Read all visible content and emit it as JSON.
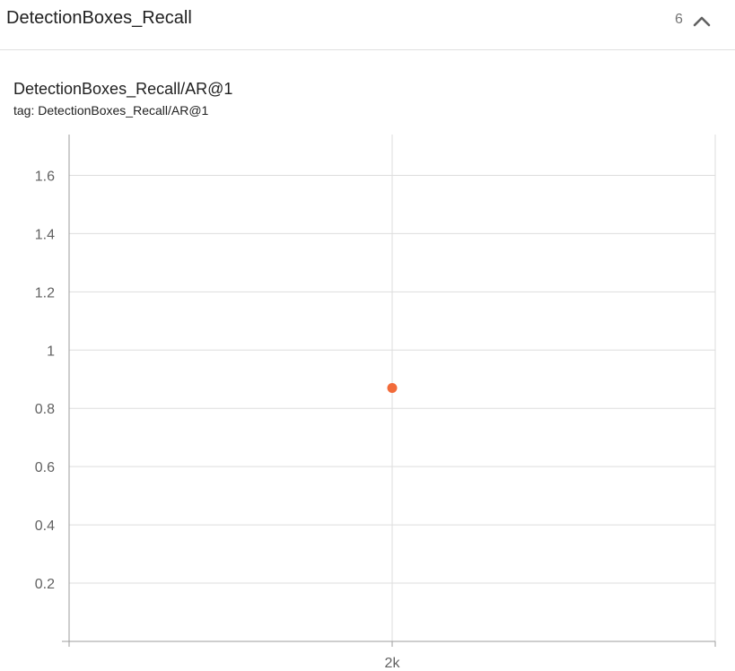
{
  "section": {
    "title": "DetectionBoxes_Recall",
    "count": "6",
    "collapse_icon": "chevron-up-icon"
  },
  "card": {
    "title": "DetectionBoxes_Recall/AR@1",
    "tag": "tag: DetectionBoxes_Recall/AR@1"
  },
  "colors": {
    "series": "#f26b3a",
    "grid": "#dddddd",
    "axis": "#9e9e9e",
    "tick_text": "#616161"
  },
  "chart_data": {
    "type": "scatter",
    "title": "DetectionBoxes_Recall/AR@1",
    "xlabel": "",
    "ylabel": "",
    "xlim": [
      0,
      4000
    ],
    "ylim": [
      0,
      1.74
    ],
    "x_ticks": [
      0,
      2000,
      4000
    ],
    "x_tick_labels": [
      "",
      "2k",
      ""
    ],
    "y_ticks": [
      0.2,
      0.4,
      0.6,
      0.8,
      1,
      1.2,
      1.4,
      1.6
    ],
    "y_tick_labels": [
      "0.2",
      "0.4",
      "0.6",
      "0.8",
      "1",
      "1.2",
      "1.4",
      "1.6"
    ],
    "grid": true,
    "series": [
      {
        "x": [
          2000
        ],
        "y": [
          0.87
        ]
      }
    ]
  }
}
